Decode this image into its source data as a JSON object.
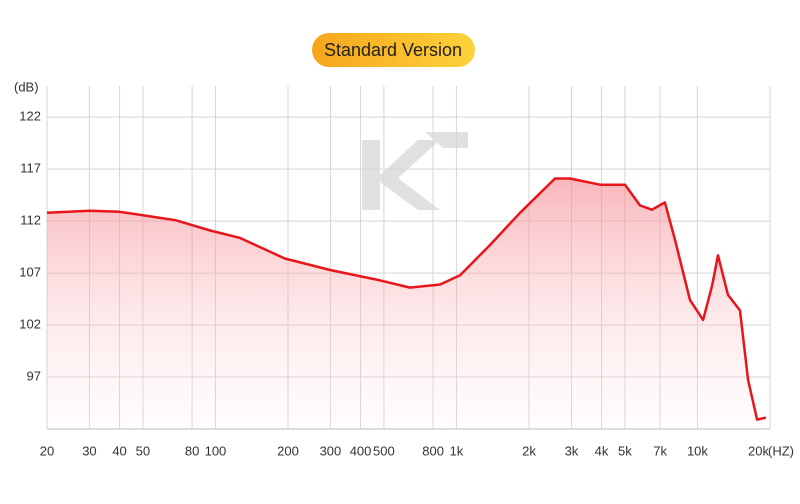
{
  "chart_data": {
    "type": "line",
    "title": "Standard Version",
    "xlabel": "(HZ)",
    "ylabel": "(dB)",
    "xscale": "log",
    "grid": true,
    "color": "#e8161b",
    "xlim": [
      20,
      20000
    ],
    "ylim": [
      92,
      125
    ],
    "xticks": [
      20,
      30,
      40,
      50,
      80,
      100,
      200,
      300,
      400,
      500,
      800,
      {
        "value": 1000,
        "label": "1k"
      },
      {
        "value": 2000,
        "label": "2k"
      },
      {
        "value": 3000,
        "label": "3k"
      },
      {
        "value": 4000,
        "label": "4k"
      },
      {
        "value": 5000,
        "label": "5k"
      },
      {
        "value": 7000,
        "label": "7k"
      },
      {
        "value": 10000,
        "label": "10k"
      },
      {
        "value": 20000,
        "label": "20k"
      }
    ],
    "yticks": [
      97,
      102,
      107,
      112,
      117,
      122
    ],
    "x": [
      20,
      30,
      40,
      68,
      95,
      126,
      194,
      299,
      482,
      641,
      855,
      1035,
      1378,
      1836,
      2564,
      2958,
      3945,
      5003,
      5780,
      6475,
      7330,
      8070,
      9310,
      10550,
      11500,
      12170,
      13390,
      15020,
      16220,
      17680,
      19240
    ],
    "values": [
      112.8,
      113.0,
      112.9,
      112.1,
      111.1,
      110.4,
      108.4,
      107.3,
      106.3,
      105.6,
      105.9,
      106.8,
      109.7,
      112.8,
      116.1,
      116.1,
      115.5,
      115.5,
      113.5,
      113.1,
      113.8,
      110.2,
      104.4,
      102.5,
      105.8,
      108.7,
      104.9,
      103.4,
      96.7,
      92.9,
      93.1
    ]
  }
}
